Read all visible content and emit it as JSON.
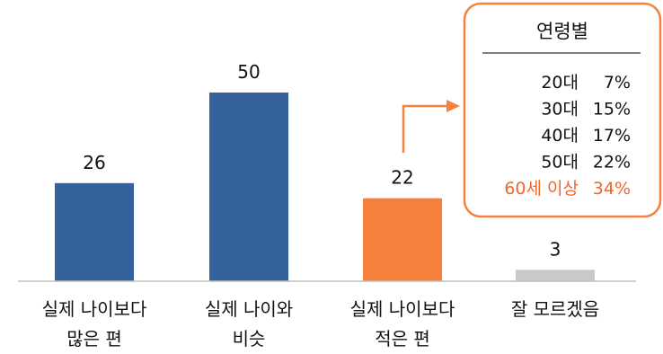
{
  "chart_data": {
    "type": "bar",
    "categories": [
      [
        "실제 나이보다",
        "많은 편"
      ],
      [
        "실제 나이와",
        "비슷"
      ],
      [
        "실제 나이보다",
        "적은 편"
      ],
      [
        "잘 모르겠음"
      ]
    ],
    "values": [
      26,
      50,
      22,
      3
    ],
    "value_labels": [
      "26",
      "50",
      "22",
      "3"
    ],
    "bar_colors": [
      "#35629D",
      "#35629D",
      "#F5813D",
      "#C9C9C9"
    ],
    "ylim": [
      0,
      50
    ],
    "grid": false,
    "title": "",
    "xlabel": "",
    "ylabel": ""
  },
  "callout": {
    "title": "연령별",
    "border_color": "#F5813D",
    "points_to_category_index": 2,
    "rows": [
      {
        "age": "20대",
        "value": "7%",
        "highlight": false
      },
      {
        "age": "30대",
        "value": "15%",
        "highlight": false
      },
      {
        "age": "40대",
        "value": "17%",
        "highlight": false
      },
      {
        "age": "50대",
        "value": "22%",
        "highlight": false
      },
      {
        "age": "60세 이상",
        "value": "34%",
        "highlight": true
      }
    ],
    "highlight_color": "#F0662B"
  }
}
